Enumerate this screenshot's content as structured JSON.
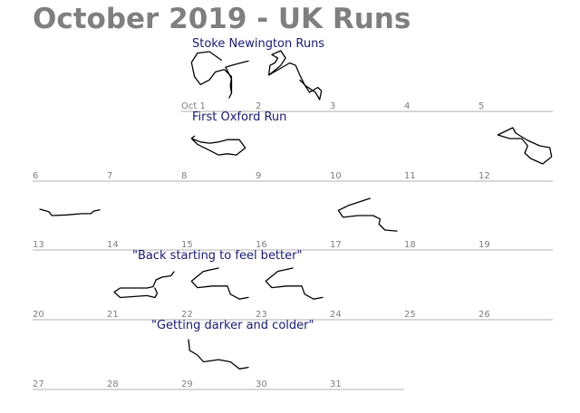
{
  "title": "October 2019 - UK Runs",
  "colors": {
    "title": "#7f7f7f",
    "day_label": "#7f7f7f",
    "run_title": "#191970",
    "route": "#000000",
    "week_line": "#b0b0b0"
  },
  "weeks": [
    {
      "days": [
        {
          "col": 2,
          "label": "Oct 1"
        },
        {
          "col": 3,
          "label": "2"
        },
        {
          "col": 4,
          "label": "3"
        },
        {
          "col": 5,
          "label": "4"
        },
        {
          "col": 6,
          "label": "5"
        }
      ],
      "titles": [
        {
          "col": 2,
          "text": "Stoke Newington Runs"
        }
      ],
      "routes": [
        {
          "col": 2,
          "shape": "loop_a"
        },
        {
          "col": 3,
          "shape": "stoke_b"
        }
      ]
    },
    {
      "days": [
        {
          "col": 0,
          "label": "6"
        },
        {
          "col": 1,
          "label": "7"
        },
        {
          "col": 2,
          "label": "8"
        },
        {
          "col": 3,
          "label": "9"
        },
        {
          "col": 4,
          "label": "10"
        },
        {
          "col": 5,
          "label": "11"
        },
        {
          "col": 6,
          "label": "12"
        }
      ],
      "titles": [
        {
          "col": 2,
          "text": "First Oxford Run"
        }
      ],
      "routes": [
        {
          "col": 2,
          "shape": "oxford"
        },
        {
          "col": 6,
          "shape": "loop_b"
        }
      ]
    },
    {
      "days": [
        {
          "col": 0,
          "label": "13"
        },
        {
          "col": 1,
          "label": "14"
        },
        {
          "col": 2,
          "label": "15"
        },
        {
          "col": 3,
          "label": "16"
        },
        {
          "col": 4,
          "label": "17"
        },
        {
          "col": 5,
          "label": "18"
        },
        {
          "col": 6,
          "label": "19"
        }
      ],
      "titles": [],
      "routes": [
        {
          "col": 0,
          "shape": "line"
        },
        {
          "col": 4,
          "shape": "hook"
        }
      ]
    },
    {
      "days": [
        {
          "col": 0,
          "label": "20"
        },
        {
          "col": 1,
          "label": "21"
        },
        {
          "col": 2,
          "label": "22"
        },
        {
          "col": 3,
          "label": "23"
        },
        {
          "col": 4,
          "label": "24"
        },
        {
          "col": 5,
          "label": "25"
        },
        {
          "col": 6,
          "label": "26"
        }
      ],
      "titles": [
        {
          "col": 1,
          "text": "\"Back starting to feel better\""
        }
      ],
      "routes": [
        {
          "col": 1,
          "shape": "back"
        },
        {
          "col": 2,
          "shape": "tri"
        },
        {
          "col": 3,
          "shape": "tri"
        }
      ]
    },
    {
      "days": [
        {
          "col": 0,
          "label": "27"
        },
        {
          "col": 1,
          "label": "28"
        },
        {
          "col": 2,
          "label": "29"
        },
        {
          "col": 3,
          "label": "30"
        },
        {
          "col": 4,
          "label": "31"
        }
      ],
      "titles": [
        {
          "col": 1,
          "text": "\"Getting darker and colder\""
        }
      ],
      "routes": [
        {
          "col": 2,
          "shape": "dark"
        }
      ]
    }
  ]
}
